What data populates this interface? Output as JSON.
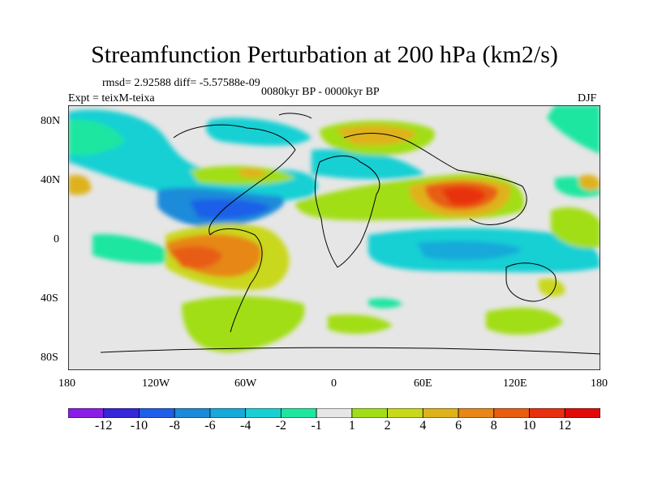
{
  "title": "Streamfunction Perturbation at 200 hPa (km2/s)",
  "stats": "rmsd= 2.92588 diff= -5.57588e-09",
  "experiment": "Expt = teixM-teixa",
  "period": "0080kyr BP - 0000kyr BP",
  "season": "DJF",
  "map": {
    "projection": "cylindrical equidistant",
    "lon_range": [
      -180,
      180
    ],
    "lat_range": [
      -90,
      90
    ],
    "lat_tick_labels": [
      "80N",
      "40N",
      "0",
      "40S",
      "80S"
    ],
    "lon_tick_labels": [
      "180",
      "120W",
      "60W",
      "0",
      "60E",
      "120E",
      "180"
    ],
    "background_color": "#e6e6e6"
  },
  "colorbar": {
    "labels": [
      "-12",
      "-10",
      "-8",
      "-6",
      "-4",
      "-2",
      "-1",
      "1",
      "2",
      "4",
      "6",
      "8",
      "10",
      "12"
    ],
    "colors": [
      "#8a1de6",
      "#3426d9",
      "#1f5ee8",
      "#1a8bd9",
      "#16a9d9",
      "#18d0d4",
      "#1ee6a0",
      "#e6e6e6",
      "#a2de18",
      "#c9d81b",
      "#dfb21b",
      "#e68717",
      "#e85d12",
      "#e8300e",
      "#e10a0a"
    ]
  }
}
